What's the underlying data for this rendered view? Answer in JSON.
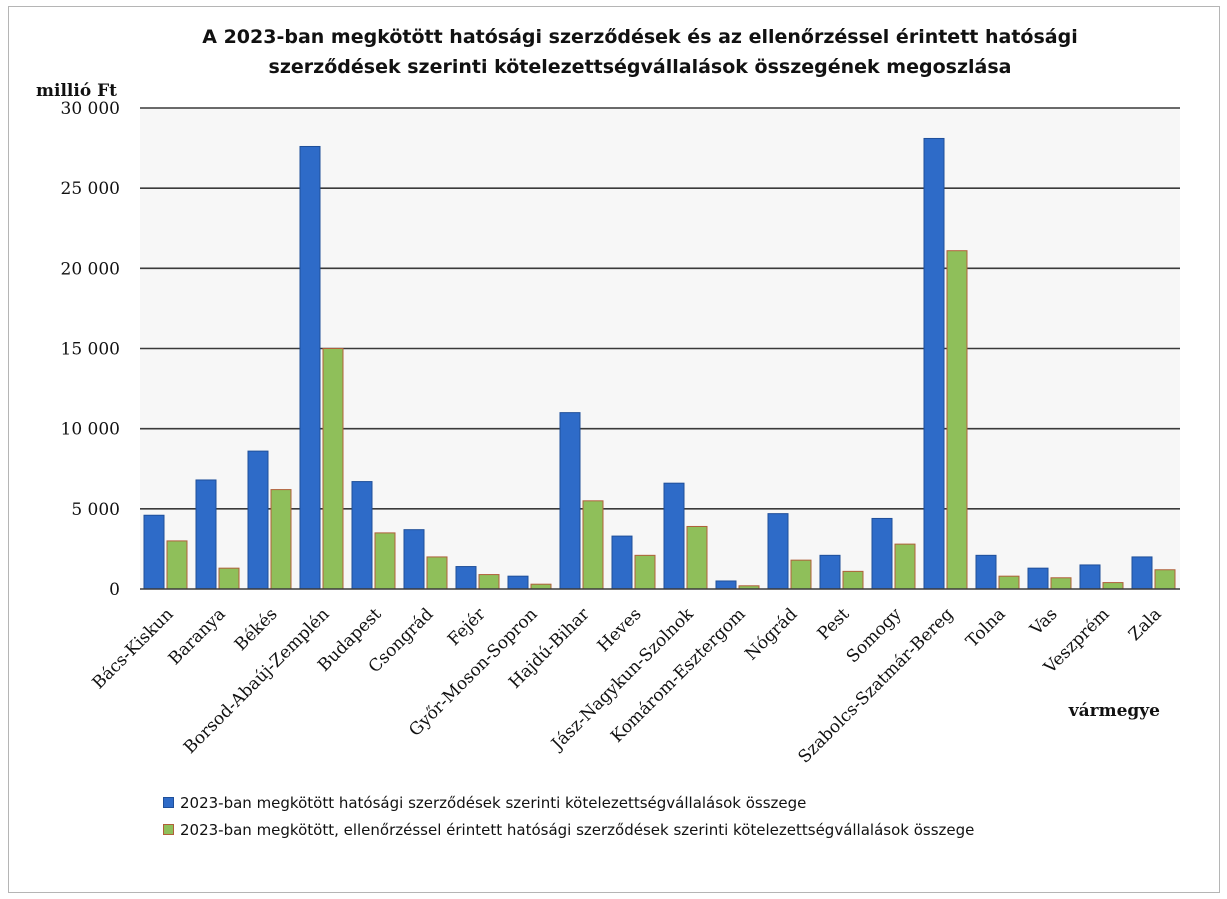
{
  "chart_data": {
    "type": "bar",
    "title": "A 2023-ban megkötött hatósági szerződések és az ellenőrzéssel érintett hatósági szerződések szerinti kötelezettségvállalások összegének megoszlása",
    "ylabel": "millió Ft",
    "xlabel": "vármegye",
    "ylim": [
      0,
      30000
    ],
    "yticks": [
      "0",
      "5 000",
      "10 000",
      "15 000",
      "20 000",
      "25 000",
      "30 000"
    ],
    "ytick_values": [
      0,
      5000,
      10000,
      15000,
      20000,
      25000,
      30000
    ],
    "grid": true,
    "legend_position": "bottom",
    "categories": [
      "Bács-Kiskun",
      "Baranya",
      "Békés",
      "Borsod-Abaúj-Zemplén",
      "Budapest",
      "Csongrád",
      "Fejér",
      "Győr-Moson-Sopron",
      "Hajdú-Bihar",
      "Heves",
      "Jász-Nagykun-Szolnok",
      "Komárom-Esztergom",
      "Nógrád",
      "Pest",
      "Somogy",
      "Szabolcs-Szatmár-Bereg",
      "Tolna",
      "Vas",
      "Veszprém",
      "Zala"
    ],
    "series": [
      {
        "name": "2023-ban megkötött hatósági szerződések szerinti kötelezettségvállalások összege",
        "color": "#2e6bc8",
        "values": [
          4600,
          6800,
          8600,
          27600,
          6700,
          3700,
          1400,
          800,
          11000,
          3300,
          6600,
          500,
          4700,
          2100,
          4400,
          28100,
          2100,
          1300,
          1500,
          2000
        ]
      },
      {
        "name": "2023-ban megkötött, ellenőrzéssel érintett hatósági szerződések szerinti kötelezettségvállalások összege",
        "color": "#8fbf5a",
        "values": [
          3000,
          1300,
          6200,
          15000,
          3500,
          2000,
          900,
          300,
          5500,
          2100,
          3900,
          200,
          1800,
          1100,
          2800,
          21100,
          800,
          700,
          400,
          1200
        ]
      }
    ]
  }
}
